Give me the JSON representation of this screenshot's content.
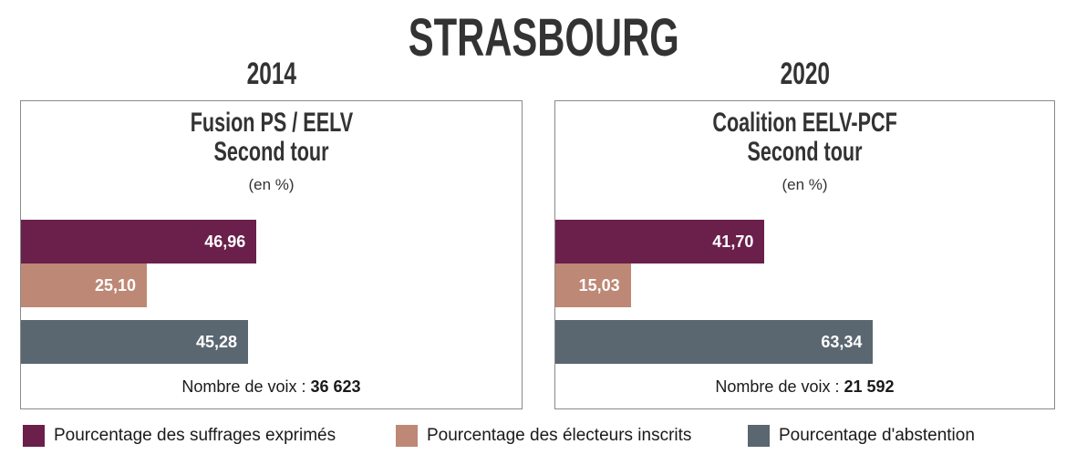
{
  "chart_data": [
    {
      "type": "bar",
      "title": "STRASBOURG",
      "year": "2014",
      "subtitle": "Fusion PS / EELV",
      "subtitle2": "Second tour",
      "unit": "(en %)",
      "categories": [
        "Pourcentage des suffrages exprimés",
        "Pourcentage des électeurs inscrits",
        "Pourcentage d'abstention"
      ],
      "values": [
        46.96,
        25.1,
        45.28
      ],
      "value_labels": [
        "46,96",
        "25,10",
        "45,28"
      ],
      "votes_label": "Nombre de voix :",
      "votes_value": "36 623"
    },
    {
      "type": "bar",
      "year": "2020",
      "subtitle": "Coalition EELV-PCF",
      "subtitle2": "Second tour",
      "unit": "(en %)",
      "categories": [
        "Pourcentage des suffrages exprimés",
        "Pourcentage des électeurs inscrits",
        "Pourcentage d'abstention"
      ],
      "values": [
        41.7,
        15.03,
        63.34
      ],
      "value_labels": [
        "41,70",
        "15,03",
        "63,34"
      ],
      "votes_label": "Nombre de voix :",
      "votes_value": "21 592"
    }
  ],
  "legend": [
    {
      "label": "Pourcentage des suffrages exprimés",
      "color": "#6b1f4b"
    },
    {
      "label": "Pourcentage des électeurs inscrits",
      "color": "#bd8875"
    },
    {
      "label": "Pourcentage d'abstention",
      "color": "#5a6670"
    }
  ]
}
